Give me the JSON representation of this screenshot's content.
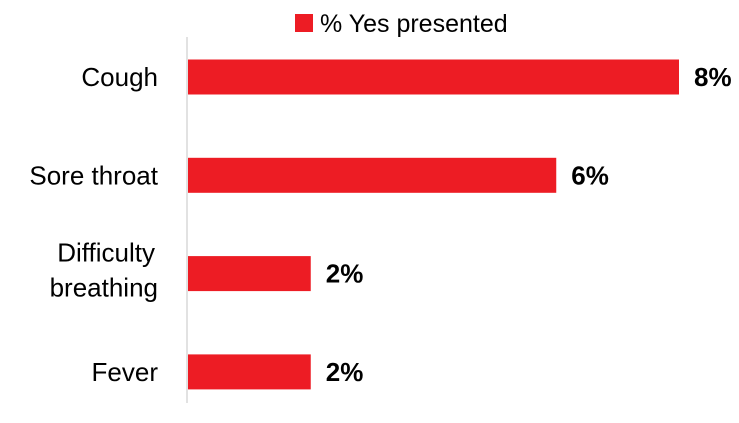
{
  "chart_data": {
    "type": "bar",
    "orientation": "horizontal",
    "categories": [
      "Cough",
      "Sore throat",
      "Difficulty breathing",
      "Fever"
    ],
    "series": [
      {
        "name": "% Yes presented",
        "values": [
          8,
          6,
          2,
          2
        ],
        "labels": [
          "8%",
          "6%",
          "2%",
          "2%"
        ],
        "color": "#ed1c24"
      }
    ],
    "title": "",
    "xlabel": "",
    "ylabel": "",
    "xlim": [
      0,
      8
    ],
    "grid": false,
    "legend": "top"
  }
}
